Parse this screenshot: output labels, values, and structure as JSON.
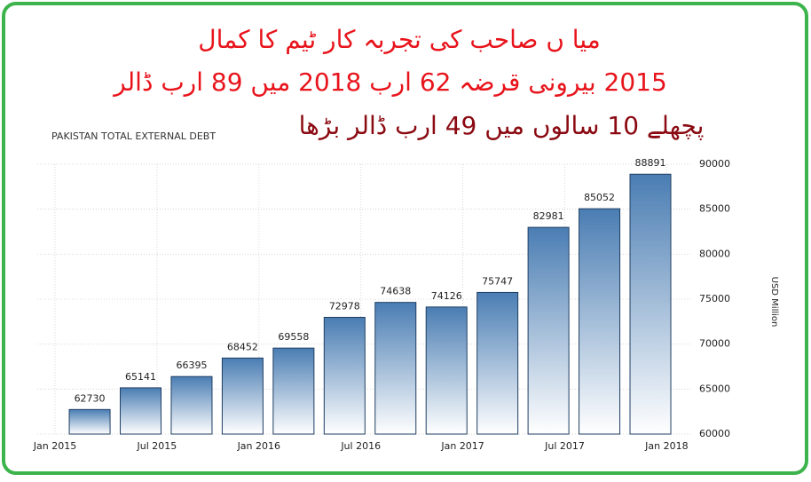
{
  "chart_data": {
    "type": "bar",
    "headline": [
      "میا ں صاحب کی تجربہ کار ٹیم کا کمال",
      "2015 بیرونی قرضہ 62 ارب 2018 میں 89 ارب ڈالر",
      "پچھلے 10 سالوں میں  49 ارب ڈالر بڑھا"
    ],
    "title": "PAKISTAN TOTAL EXTERNAL DEBT",
    "y_label": "USD Million",
    "categories": [
      null,
      null,
      null,
      null,
      null,
      null,
      null,
      null,
      null,
      null,
      null,
      null
    ],
    "values": [
      62730,
      65141,
      66395,
      68452,
      69558,
      72978,
      74638,
      74126,
      75747,
      82981,
      85052,
      88891
    ],
    "color": "#4a7db3",
    "x_tick_labels": [
      "Jan 2015",
      "Jul 2015",
      "Jan 2016",
      "Jul 2016",
      "Jan 2017",
      "Jul 2017",
      "Jan 2018"
    ],
    "ylim": [
      60000,
      90000
    ],
    "yticks": [
      60000,
      65000,
      70000,
      75000,
      80000,
      85000,
      90000
    ],
    "grid": true
  }
}
